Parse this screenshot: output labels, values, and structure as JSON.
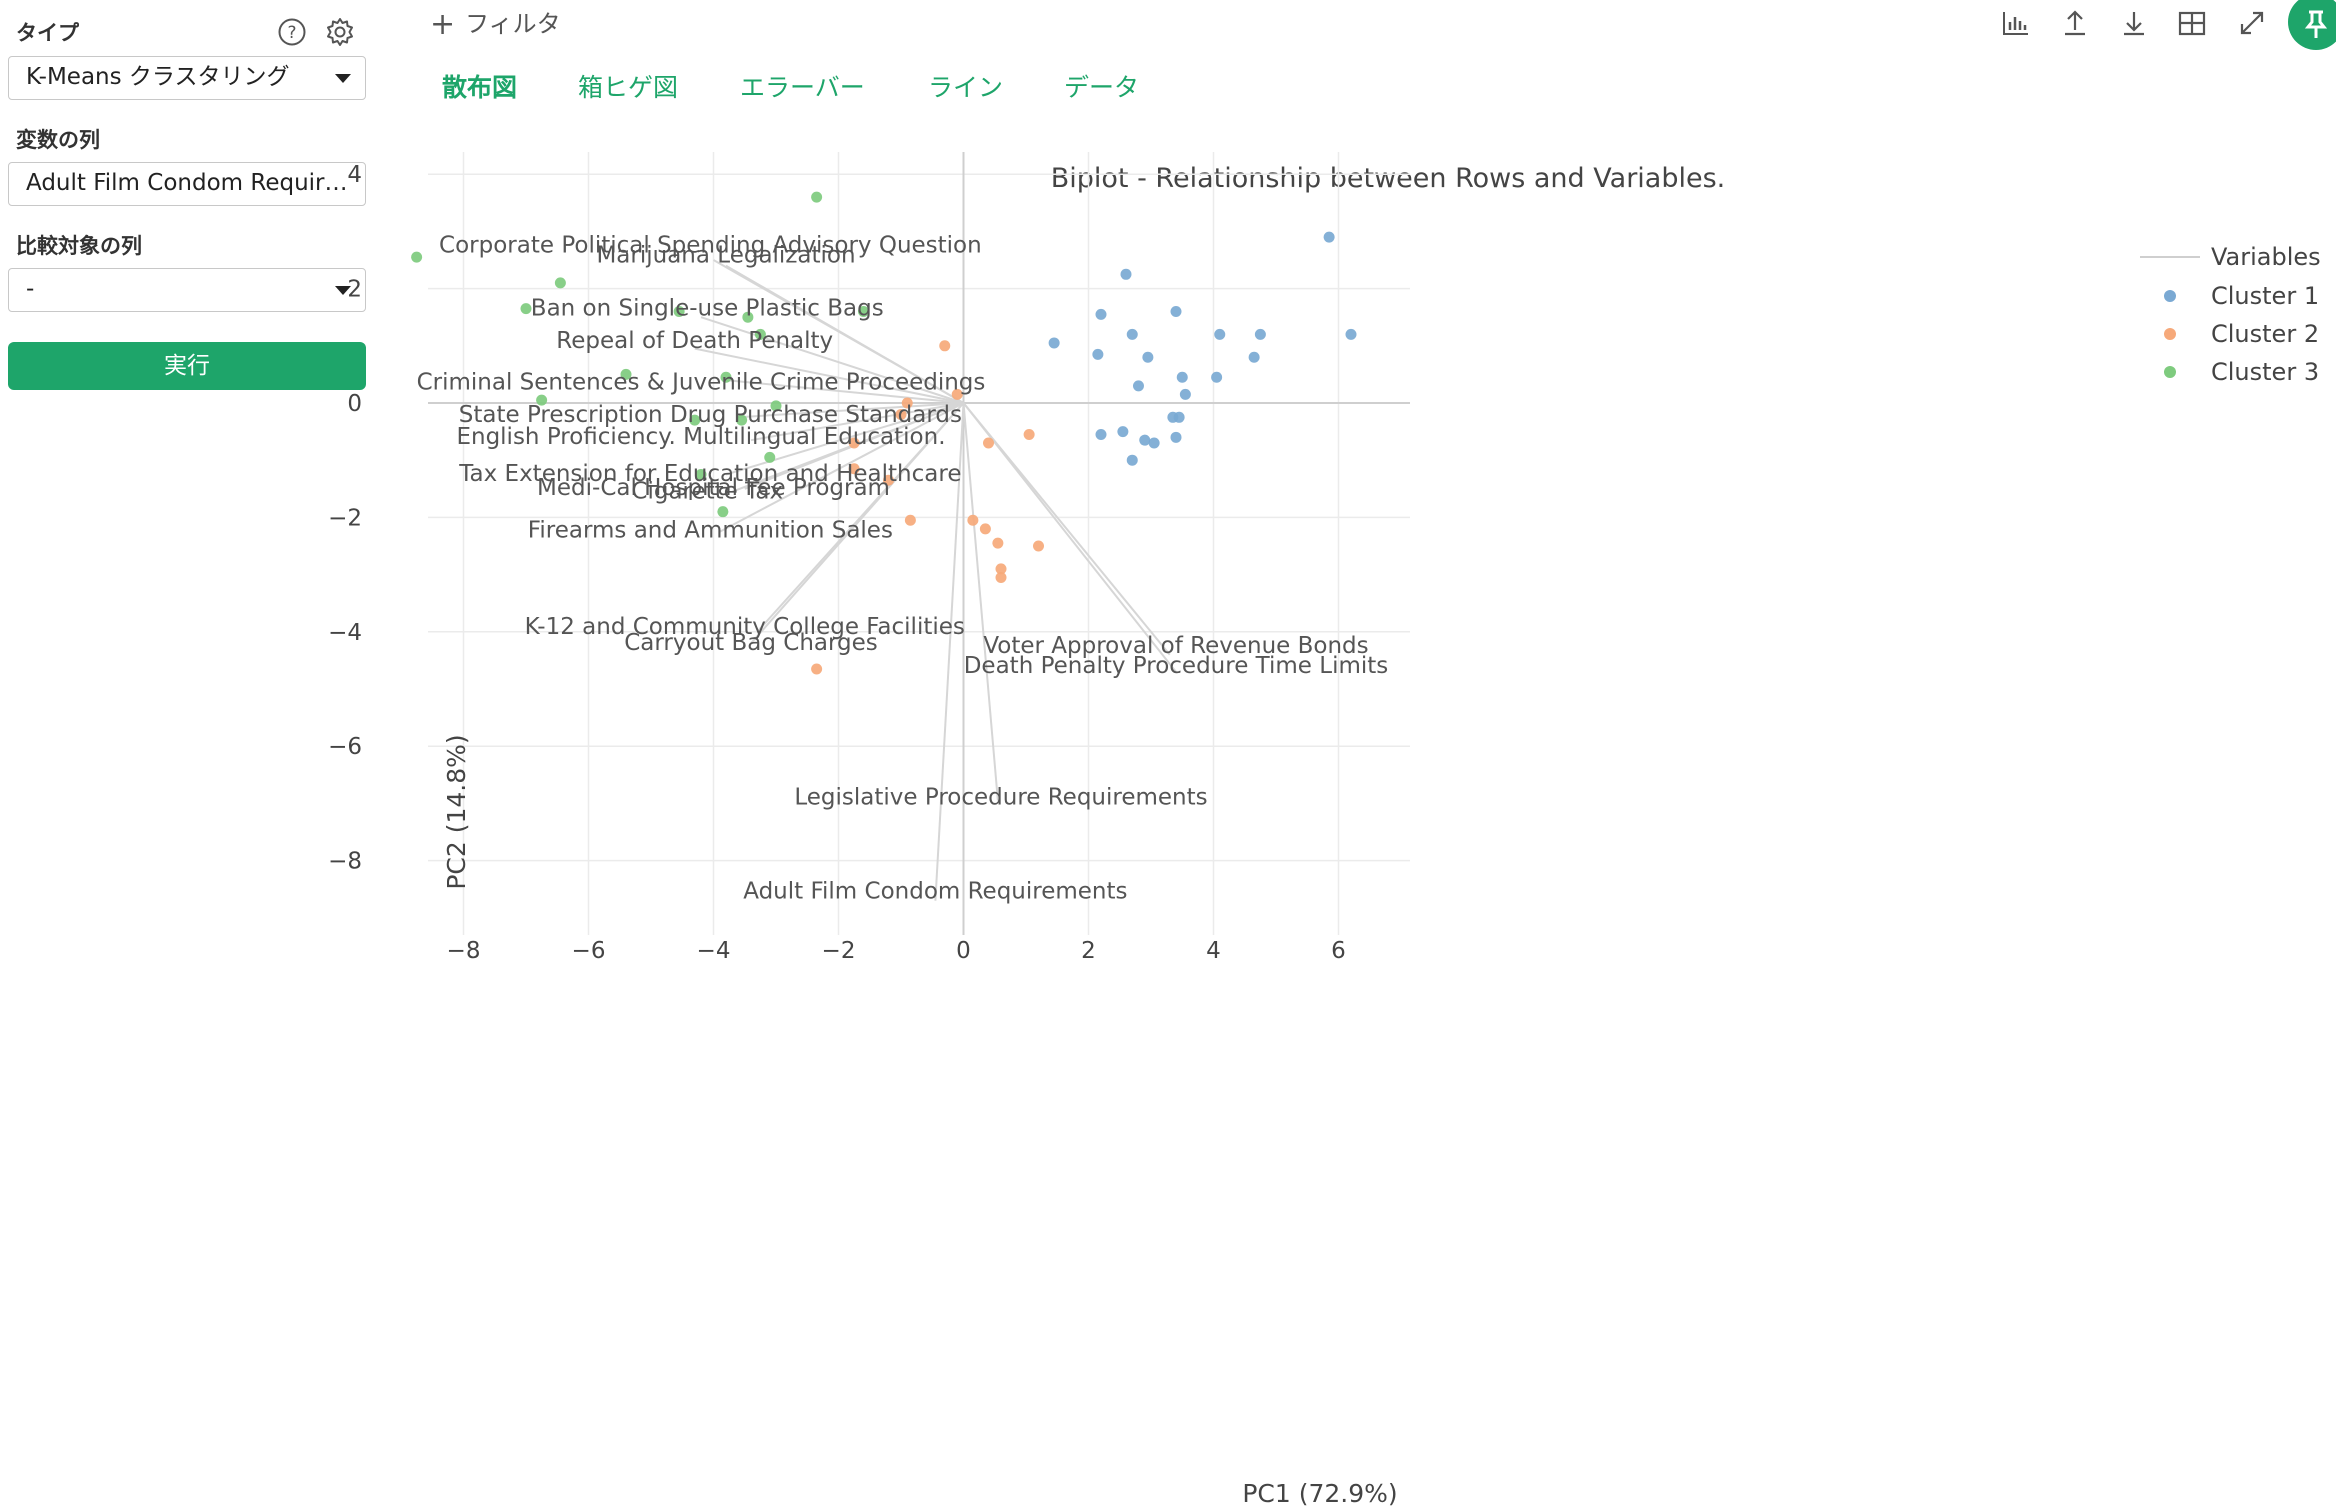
{
  "sidebar": {
    "type_label": "タイプ",
    "type_value": "K-Means クラスタリング",
    "variables_label": "変数の列",
    "variables_value": "Adult Film Condom Requir…",
    "compare_label": "比較対象の列",
    "compare_value": "-",
    "run_label": "実行",
    "help_icon": "help-circle-icon",
    "settings_icon": "gear-icon"
  },
  "filter": {
    "plus": "+",
    "label": "フィルタ"
  },
  "tabs": [
    {
      "label": "散布図",
      "active": true
    },
    {
      "label": "箱ヒゲ図",
      "active": false
    },
    {
      "label": "エラーバー",
      "active": false
    },
    {
      "label": "ライン",
      "active": false
    },
    {
      "label": "データ",
      "active": false
    }
  ],
  "toolbar": {
    "icons": [
      "bar-chart-icon",
      "upload-icon",
      "download-icon",
      "table-grid-icon",
      "expand-icon",
      "pin-icon"
    ]
  },
  "colors": {
    "accent": "#1ea56a",
    "cluster1": "#7aa9d3",
    "cluster2": "#f6a97a",
    "cluster3": "#7ecb7e",
    "variable_line": "#d6d6d6"
  },
  "chart_data": {
    "type": "scatter",
    "title": "Biplot - Relationship between Rows and Variables.",
    "xlabel": "PC1 (72.9%)",
    "ylabel": "PC2 (14.8%)",
    "xlim": [
      -8.8,
      7.2
    ],
    "ylim": [
      -9.3,
      4.3
    ],
    "xticks": [
      -8,
      -6,
      -4,
      -2,
      0,
      2,
      4,
      6
    ],
    "yticks": [
      4,
      2,
      0,
      -2,
      -4,
      -6,
      -8
    ],
    "xtick_labels": [
      "−8",
      "−6",
      "−4",
      "−2",
      "0",
      "2",
      "4",
      "6"
    ],
    "ytick_labels": [
      "4",
      "2",
      "0",
      "−2",
      "−4",
      "−6",
      "−8"
    ],
    "grid": true,
    "legend": {
      "position": "top-right",
      "variables_label": "Variables"
    },
    "variables": [
      {
        "name": "Corporate Political Spending Advisory Question",
        "x": -4.0,
        "y": 2.5,
        "lx": -4.05,
        "ly": 2.77
      },
      {
        "name": "Marijuana Legalization",
        "x": -3.8,
        "y": 2.4,
        "lx": -3.8,
        "ly": 2.6
      },
      {
        "name": "Ban on Single-use Plastic Bags",
        "x": -4.2,
        "y": 1.5,
        "lx": -4.1,
        "ly": 1.67
      },
      {
        "name": "Repeal of Death Penalty",
        "x": -4.3,
        "y": 0.95,
        "lx": -4.3,
        "ly": 1.1
      },
      {
        "name": "Criminal Sentences & Juvenile Crime Proceedings",
        "x": -3.8,
        "y": 0.4,
        "lx": -4.2,
        "ly": 0.38
      },
      {
        "name": "State Prescription Drug Purchase Standards",
        "x": -3.6,
        "y": -0.25,
        "lx": -4.05,
        "ly": -0.19
      },
      {
        "name": "English Proficiency. Multilingual Education.",
        "x": -3.4,
        "y": -0.65,
        "lx": -4.2,
        "ly": -0.58
      },
      {
        "name": "Tax Extension for Education and Healthcare",
        "x": -3.8,
        "y": -1.25,
        "lx": -4.05,
        "ly": -1.22
      },
      {
        "name": "Medi-Cal Hospital Fee Program",
        "x": -3.5,
        "y": -1.5,
        "lx": -4.0,
        "ly": -1.47
      },
      {
        "name": "Cigarette Tax",
        "x": -3.7,
        "y": -1.55,
        "lx": -4.1,
        "ly": -1.53
      },
      {
        "name": "Firearms and Ammunition Sales",
        "x": -3.9,
        "y": -2.25,
        "lx": -4.05,
        "ly": -2.21
      },
      {
        "name": "K-12 and Community College Facilities",
        "x": -3.3,
        "y": -4.0,
        "lx": -3.5,
        "ly": -3.9
      },
      {
        "name": "Carryout Bag Charges",
        "x": -3.4,
        "y": -4.2,
        "lx": -3.4,
        "ly": -4.18
      },
      {
        "name": "Voter Approval of Revenue Bonds",
        "x": 3.3,
        "y": -4.4,
        "lx": 3.4,
        "ly": -4.23
      },
      {
        "name": "Death Penalty Procedure Time Limits",
        "x": 3.4,
        "y": -4.7,
        "lx": 3.4,
        "ly": -4.58
      },
      {
        "name": "Legislative Procedure Requirements",
        "x": 0.55,
        "y": -6.95,
        "lx": 0.6,
        "ly": -6.88
      },
      {
        "name": "Adult Film Condom Requirements",
        "x": -0.45,
        "y": -8.7,
        "lx": -0.45,
        "ly": -8.52
      }
    ],
    "series": [
      {
        "name": "Cluster 1",
        "points": [
          [
            5.85,
            2.9
          ],
          [
            2.6,
            2.25
          ],
          [
            2.2,
            1.55
          ],
          [
            3.4,
            1.6
          ],
          [
            1.45,
            1.05
          ],
          [
            2.15,
            0.85
          ],
          [
            2.7,
            1.2
          ],
          [
            2.95,
            0.8
          ],
          [
            4.1,
            1.2
          ],
          [
            4.75,
            1.2
          ],
          [
            6.2,
            1.2
          ],
          [
            4.65,
            0.8
          ],
          [
            2.8,
            0.3
          ],
          [
            3.5,
            0.45
          ],
          [
            4.05,
            0.45
          ],
          [
            3.55,
            0.15
          ],
          [
            3.35,
            -0.25
          ],
          [
            3.45,
            -0.25
          ],
          [
            2.2,
            -0.55
          ],
          [
            2.55,
            -0.5
          ],
          [
            2.9,
            -0.65
          ],
          [
            3.05,
            -0.7
          ],
          [
            3.4,
            -0.6
          ],
          [
            2.7,
            -1.0
          ]
        ]
      },
      {
        "name": "Cluster 2",
        "points": [
          [
            -0.3,
            1.0
          ],
          [
            -0.1,
            0.15
          ],
          [
            -0.9,
            0.0
          ],
          [
            -1.0,
            -0.2
          ],
          [
            -1.75,
            -0.7
          ],
          [
            0.4,
            -0.7
          ],
          [
            1.05,
            -0.55
          ],
          [
            -1.75,
            -1.15
          ],
          [
            -1.2,
            -1.35
          ],
          [
            -0.85,
            -2.05
          ],
          [
            0.15,
            -2.05
          ],
          [
            0.35,
            -2.2
          ],
          [
            0.55,
            -2.45
          ],
          [
            1.2,
            -2.5
          ],
          [
            0.6,
            -2.9
          ],
          [
            0.6,
            -3.05
          ],
          [
            -2.35,
            -4.65
          ]
        ]
      },
      {
        "name": "Cluster 3",
        "points": [
          [
            -8.75,
            2.55
          ],
          [
            -6.45,
            2.1
          ],
          [
            -7.0,
            1.65
          ],
          [
            -2.35,
            3.6
          ],
          [
            -1.6,
            1.6
          ],
          [
            -4.55,
            1.6
          ],
          [
            -3.45,
            1.5
          ],
          [
            -3.25,
            1.2
          ],
          [
            -5.4,
            0.5
          ],
          [
            -3.8,
            0.45
          ],
          [
            -6.75,
            0.05
          ],
          [
            -3.0,
            -0.05
          ],
          [
            -4.3,
            -0.3
          ],
          [
            -3.55,
            -0.3
          ],
          [
            -3.1,
            -0.95
          ],
          [
            -4.2,
            -1.25
          ],
          [
            -3.85,
            -1.9
          ]
        ]
      }
    ]
  }
}
